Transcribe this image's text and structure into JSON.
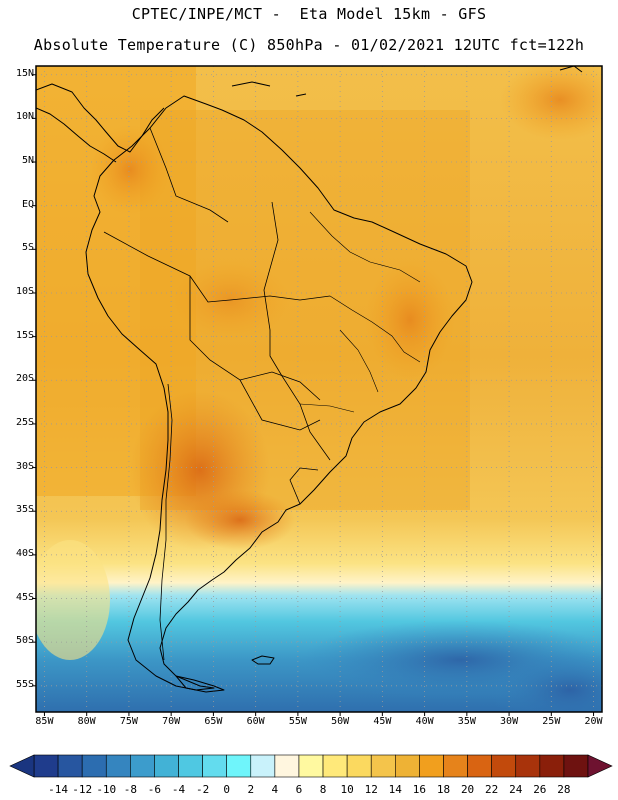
{
  "header": {
    "line1": "CPTEC/INPE/MCT -  Eta Model 15km - GFS",
    "line2": "Absolute Temperature (C) 850hPa - 01/02/2021 12UTC fct=122h"
  },
  "map": {
    "lat_labels": [
      "15N",
      "10N",
      "5N",
      "EQ",
      "5S",
      "10S",
      "15S",
      "20S",
      "25S",
      "30S",
      "35S",
      "40S",
      "45S",
      "50S",
      "55S"
    ],
    "lon_labels": [
      "85W",
      "80W",
      "75W",
      "70W",
      "65W",
      "60W",
      "55W",
      "50W",
      "45W",
      "40W",
      "35W",
      "30W",
      "25W",
      "20W"
    ],
    "lat_values": [
      15,
      10,
      5,
      0,
      -5,
      -10,
      -15,
      -20,
      -25,
      -30,
      -35,
      -40,
      -45,
      -50,
      -55
    ],
    "lon_values": [
      -85,
      -80,
      -75,
      -70,
      -65,
      -60,
      -55,
      -50,
      -45,
      -40,
      -35,
      -30,
      -25,
      -20
    ],
    "extent": {
      "lon_min": -86,
      "lon_max": -19,
      "lat_min": -58,
      "lat_max": 16
    }
  },
  "colorbar": {
    "labels": [
      "-14",
      "-12",
      "-10",
      "-8",
      "-6",
      "-4",
      "-2",
      "0",
      "2",
      "4",
      "6",
      "8",
      "10",
      "12",
      "14",
      "16",
      "18",
      "20",
      "22",
      "24",
      "26",
      "28"
    ],
    "colors": [
      "#1f3c8c",
      "#2756a0",
      "#2c6db0",
      "#3585bf",
      "#3c9ccc",
      "#42b2d6",
      "#4fc8e2",
      "#63dcee",
      "#6ff5fb",
      "#c9f2fb",
      "#fff6df",
      "#fff9a0",
      "#ffe97a",
      "#fbd95f",
      "#f4c44b",
      "#eeb235",
      "#f19f1e",
      "#e6831b",
      "#d96412",
      "#c24a0c",
      "#a8330b",
      "#8a1f0a",
      "#6e1210"
    ]
  }
}
